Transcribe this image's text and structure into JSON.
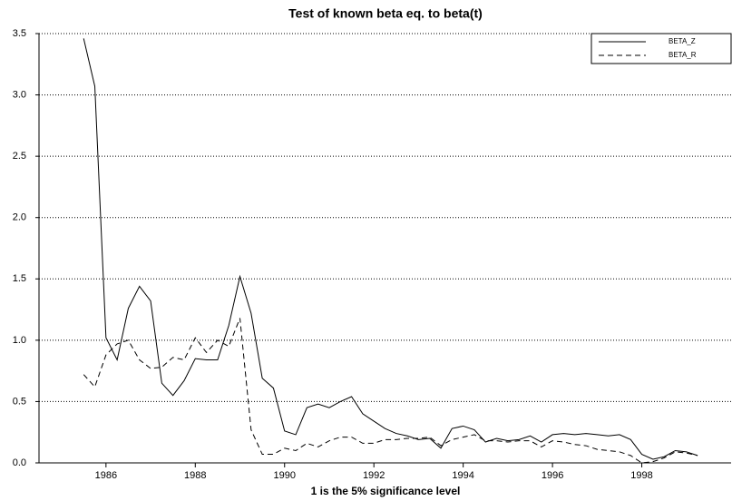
{
  "chart_data": {
    "type": "line",
    "title": "Test of known beta eq. to beta(t)",
    "x_label": "1 is the 5% significance level",
    "x": [
      1985.5,
      1985.75,
      1986,
      1986.25,
      1986.5,
      1986.75,
      1987,
      1987.25,
      1987.5,
      1987.75,
      1988,
      1988.25,
      1988.5,
      1988.75,
      1989,
      1989.25,
      1989.5,
      1989.75,
      1990,
      1990.25,
      1990.5,
      1990.75,
      1991,
      1991.25,
      1991.5,
      1991.75,
      1992,
      1992.25,
      1992.5,
      1992.75,
      1993,
      1993.25,
      1993.5,
      1993.75,
      1994,
      1994.25,
      1994.5,
      1994.75,
      1995,
      1995.25,
      1995.5,
      1995.75,
      1996,
      1996.25,
      1996.5,
      1996.75,
      1997,
      1997.25,
      1997.5,
      1997.75,
      1998,
      1998.25,
      1998.5,
      1998.75,
      1999,
      1999.25
    ],
    "series": [
      {
        "name": "BETA_Z",
        "color": "#000000",
        "dash": "none",
        "values": [
          3.46,
          3.07,
          1.02,
          0.84,
          1.26,
          1.44,
          1.32,
          0.65,
          0.55,
          0.67,
          0.85,
          0.84,
          0.84,
          1.12,
          1.52,
          1.22,
          0.69,
          0.61,
          0.26,
          0.23,
          0.45,
          0.48,
          0.45,
          0.5,
          0.54,
          0.4,
          0.34,
          0.28,
          0.24,
          0.22,
          0.19,
          0.2,
          0.12,
          0.28,
          0.3,
          0.27,
          0.17,
          0.2,
          0.18,
          0.19,
          0.22,
          0.17,
          0.23,
          0.24,
          0.23,
          0.24,
          0.23,
          0.22,
          0.23,
          0.19,
          0.07,
          0.03,
          0.05,
          0.1,
          0.09,
          0.06
        ]
      },
      {
        "name": "BETA_R",
        "color": "#000000",
        "dash": "6,4",
        "values": [
          0.72,
          0.62,
          0.88,
          0.97,
          1.0,
          0.84,
          0.77,
          0.78,
          0.86,
          0.84,
          1.02,
          0.9,
          1.0,
          0.95,
          1.18,
          0.27,
          0.07,
          0.07,
          0.12,
          0.1,
          0.16,
          0.13,
          0.18,
          0.21,
          0.21,
          0.16,
          0.16,
          0.19,
          0.19,
          0.2,
          0.2,
          0.21,
          0.14,
          0.19,
          0.21,
          0.23,
          0.18,
          0.18,
          0.17,
          0.18,
          0.18,
          0.13,
          0.18,
          0.17,
          0.15,
          0.14,
          0.11,
          0.1,
          0.09,
          0.06,
          0.0,
          0.01,
          0.04,
          0.09,
          0.08,
          0.06
        ]
      }
    ],
    "xlim": [
      1984.5,
      2000
    ],
    "xticks": [
      1986,
      1988,
      1990,
      1992,
      1994,
      1996,
      1998
    ],
    "ylim": [
      0,
      3.5
    ],
    "yticks": [
      {
        "value": 0,
        "label": "0.0"
      },
      0.5,
      {
        "value": 1,
        "label": "1.0"
      },
      1.5,
      {
        "value": 2,
        "label": "2.0"
      },
      2.5,
      {
        "value": 3,
        "label": "3.0"
      },
      3.5
    ],
    "grid": true,
    "legend": "upper right"
  }
}
